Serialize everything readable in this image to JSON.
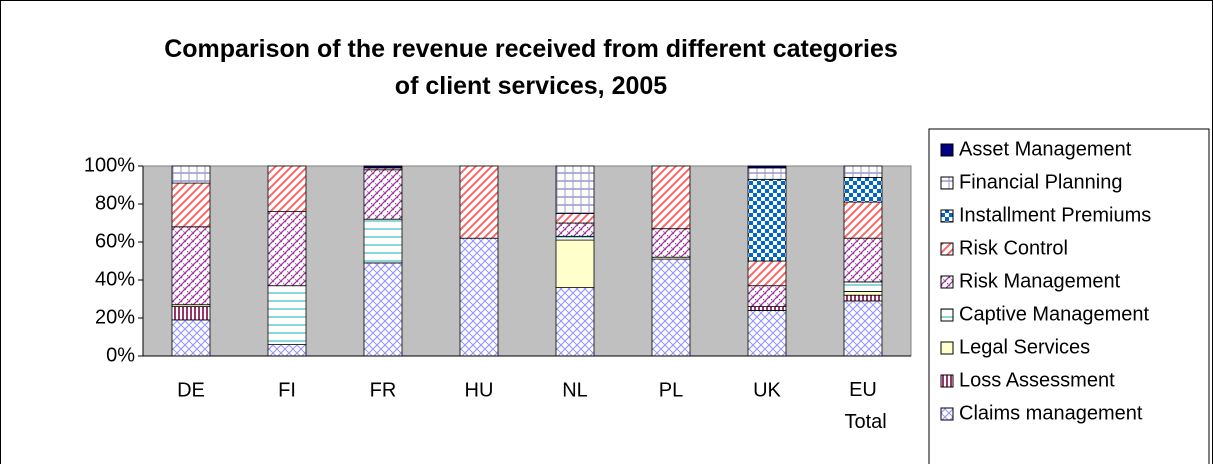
{
  "chart_data": {
    "type": "stacked_bar",
    "title": "Comparison of the revenue received from different categories of client services, 2005",
    "categories": [
      "DE",
      "FI",
      "FR",
      "HU",
      "NL",
      "PL",
      "UK",
      "EU Total"
    ],
    "series": [
      {
        "name": "Claims management",
        "color": "#9999ff",
        "values": [
          19,
          6,
          49,
          62,
          36,
          51,
          24,
          29
        ]
      },
      {
        "name": "Loss Assessment",
        "color": "#993366",
        "values": [
          7,
          0,
          0,
          0,
          0,
          0,
          2,
          3
        ]
      },
      {
        "name": "Legal Services",
        "color": "#e6e600",
        "values": [
          1,
          0,
          0,
          0,
          25,
          1,
          0,
          2
        ]
      },
      {
        "name": "Captive Management",
        "color": "#66cccc",
        "values": [
          0,
          31,
          23,
          0,
          2,
          0,
          0,
          5
        ]
      },
      {
        "name": "Risk Management",
        "color": "#993399",
        "values": [
          41,
          39,
          26,
          0,
          7,
          15,
          11,
          23
        ]
      },
      {
        "name": "Risk Control",
        "color": "#ff6666",
        "values": [
          23,
          24,
          1,
          38,
          5,
          33,
          13,
          19
        ]
      },
      {
        "name": "Installment Premiums",
        "color": "#0066cc",
        "values": [
          0,
          0,
          0,
          0,
          0,
          0,
          43,
          13
        ]
      },
      {
        "name": "Financial Planning",
        "color": "#9999cc",
        "values": [
          9,
          0,
          0,
          0,
          25,
          0,
          6,
          6
        ]
      },
      {
        "name": "Asset Management",
        "color": "#000080",
        "values": [
          0,
          0,
          1,
          0,
          0,
          0,
          1,
          0
        ]
      }
    ],
    "ylim": [
      0,
      100
    ],
    "yticks": [
      {
        "value": 0,
        "label": "0%"
      },
      {
        "value": 20,
        "label": "20%"
      },
      {
        "value": 40,
        "label": "40%"
      },
      {
        "value": 60,
        "label": "60%"
      },
      {
        "value": 80,
        "label": "80%"
      },
      {
        "value": 100,
        "label": "100%"
      }
    ],
    "legend": "right"
  }
}
